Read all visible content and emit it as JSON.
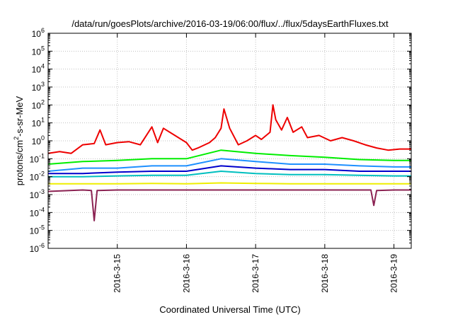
{
  "chart_data": {
    "type": "line",
    "title": "/data/run/goesPlots/archive/2016-03-19/06:00/flux/../flux/5daysEarthFluxes.txt",
    "xlabel": "Coordinated Universal Time (UTC)",
    "ylabel": {
      "pre": "protons/cm",
      "sup": "2",
      "post": "-s-sr-MeV"
    },
    "y_scale": "log",
    "ylim": [
      1e-06,
      1000000.0
    ],
    "xlim": [
      "2016-03-14 00:00",
      "2016-03-19 06:00"
    ],
    "grid": true,
    "legend": "none",
    "y_ticks": [
      {
        "value": 1e-06,
        "base": "10",
        "exp": "-6"
      },
      {
        "value": 1e-05,
        "base": "10",
        "exp": "-5"
      },
      {
        "value": 0.0001,
        "base": "10",
        "exp": "-4"
      },
      {
        "value": 0.001,
        "base": "10",
        "exp": "-3"
      },
      {
        "value": 0.01,
        "base": "10",
        "exp": "-2"
      },
      {
        "value": 0.1,
        "base": "10",
        "exp": "-1"
      },
      {
        "value": 1.0,
        "base": "10",
        "exp": "0"
      },
      {
        "value": 10.0,
        "base": "10",
        "exp": "1"
      },
      {
        "value": 100.0,
        "base": "10",
        "exp": "2"
      },
      {
        "value": 1000.0,
        "base": "10",
        "exp": "3"
      },
      {
        "value": 10000.0,
        "base": "10",
        "exp": "4"
      },
      {
        "value": 100000.0,
        "base": "10",
        "exp": "5"
      },
      {
        "value": 1000000.0,
        "base": "10",
        "exp": "6"
      }
    ],
    "x_ticks": [
      {
        "value": "2016-03-15 00:00",
        "label": "2016-3-15"
      },
      {
        "value": "2016-03-16 00:00",
        "label": "2016-3-16"
      },
      {
        "value": "2016-03-17 00:00",
        "label": "2016-3-17"
      },
      {
        "value": "2016-03-18 00:00",
        "label": "2016-3-18"
      },
      {
        "value": "2016-03-19 00:00",
        "label": "2016-3-19"
      }
    ],
    "series": [
      {
        "color": "#ee0000",
        "points": [
          [
            "2016-03-14 00:00",
            0.2
          ],
          [
            "2016-03-14 04:00",
            0.25
          ],
          [
            "2016-03-14 08:00",
            0.2
          ],
          [
            "2016-03-14 12:00",
            0.6
          ],
          [
            "2016-03-14 16:00",
            0.7
          ],
          [
            "2016-03-14 18:00",
            4.0
          ],
          [
            "2016-03-14 20:00",
            0.6
          ],
          [
            "2016-03-15 00:00",
            0.8
          ],
          [
            "2016-03-15 04:00",
            0.9
          ],
          [
            "2016-03-15 08:00",
            0.6
          ],
          [
            "2016-03-15 12:00",
            6.0
          ],
          [
            "2016-03-15 14:00",
            0.8
          ],
          [
            "2016-03-15 16:00",
            5.0
          ],
          [
            "2016-03-15 20:00",
            2.0
          ],
          [
            "2016-03-16 00:00",
            0.8
          ],
          [
            "2016-03-16 02:00",
            0.3
          ],
          [
            "2016-03-16 04:00",
            0.4
          ],
          [
            "2016-03-16 08:00",
            0.8
          ],
          [
            "2016-03-16 10:00",
            1.5
          ],
          [
            "2016-03-16 12:00",
            5.0
          ],
          [
            "2016-03-16 13:00",
            60.0
          ],
          [
            "2016-03-16 15:00",
            5.0
          ],
          [
            "2016-03-16 18:00",
            0.6
          ],
          [
            "2016-03-16 21:00",
            1.0
          ],
          [
            "2016-03-17 00:00",
            2.0
          ],
          [
            "2016-03-17 02:00",
            1.2
          ],
          [
            "2016-03-17 05:00",
            3.0
          ],
          [
            "2016-03-17 06:00",
            100.0
          ],
          [
            "2016-03-17 07:00",
            15.0
          ],
          [
            "2016-03-17 09:00",
            4.0
          ],
          [
            "2016-03-17 11:00",
            20.0
          ],
          [
            "2016-03-17 13:00",
            3.0
          ],
          [
            "2016-03-17 16:00",
            6.0
          ],
          [
            "2016-03-17 18:00",
            1.5
          ],
          [
            "2016-03-17 22:00",
            2.0
          ],
          [
            "2016-03-18 02:00",
            1.0
          ],
          [
            "2016-03-18 06:00",
            1.5
          ],
          [
            "2016-03-18 10:00",
            1.0
          ],
          [
            "2016-03-18 14:00",
            0.6
          ],
          [
            "2016-03-18 18:00",
            0.4
          ],
          [
            "2016-03-18 22:00",
            0.3
          ],
          [
            "2016-03-19 02:00",
            0.35
          ],
          [
            "2016-03-19 06:00",
            0.35
          ]
        ]
      },
      {
        "color": "#00ee00",
        "points": [
          [
            "2016-03-14 00:00",
            0.05
          ],
          [
            "2016-03-14 12:00",
            0.07
          ],
          [
            "2016-03-15 00:00",
            0.08
          ],
          [
            "2016-03-15 12:00",
            0.1
          ],
          [
            "2016-03-16 00:00",
            0.1
          ],
          [
            "2016-03-16 12:00",
            0.3
          ],
          [
            "2016-03-17 00:00",
            0.2
          ],
          [
            "2016-03-17 12:00",
            0.15
          ],
          [
            "2016-03-18 00:00",
            0.12
          ],
          [
            "2016-03-18 12:00",
            0.09
          ],
          [
            "2016-03-19 00:00",
            0.08
          ],
          [
            "2016-03-19 06:00",
            0.08
          ]
        ]
      },
      {
        "color": "#1e90ff",
        "points": [
          [
            "2016-03-14 00:00",
            0.02
          ],
          [
            "2016-03-14 12:00",
            0.03
          ],
          [
            "2016-03-15 00:00",
            0.03
          ],
          [
            "2016-03-15 12:00",
            0.04
          ],
          [
            "2016-03-16 00:00",
            0.04
          ],
          [
            "2016-03-16 12:00",
            0.1
          ],
          [
            "2016-03-17 00:00",
            0.07
          ],
          [
            "2016-03-17 12:00",
            0.05
          ],
          [
            "2016-03-18 00:00",
            0.05
          ],
          [
            "2016-03-18 12:00",
            0.04
          ],
          [
            "2016-03-19 00:00",
            0.035
          ],
          [
            "2016-03-19 06:00",
            0.035
          ]
        ]
      },
      {
        "color": "#0000cc",
        "points": [
          [
            "2016-03-14 00:00",
            0.015
          ],
          [
            "2016-03-14 12:00",
            0.015
          ],
          [
            "2016-03-15 00:00",
            0.018
          ],
          [
            "2016-03-15 12:00",
            0.02
          ],
          [
            "2016-03-16 00:00",
            0.02
          ],
          [
            "2016-03-16 12:00",
            0.04
          ],
          [
            "2016-03-17 00:00",
            0.03
          ],
          [
            "2016-03-17 12:00",
            0.025
          ],
          [
            "2016-03-18 00:00",
            0.025
          ],
          [
            "2016-03-18 12:00",
            0.02
          ],
          [
            "2016-03-19 00:00",
            0.02
          ],
          [
            "2016-03-19 06:00",
            0.02
          ]
        ]
      },
      {
        "color": "#00bfbf",
        "points": [
          [
            "2016-03-14 00:00",
            0.01
          ],
          [
            "2016-03-14 12:00",
            0.01
          ],
          [
            "2016-03-15 00:00",
            0.011
          ],
          [
            "2016-03-15 12:00",
            0.012
          ],
          [
            "2016-03-16 00:00",
            0.012
          ],
          [
            "2016-03-16 12:00",
            0.02
          ],
          [
            "2016-03-17 00:00",
            0.015
          ],
          [
            "2016-03-17 12:00",
            0.013
          ],
          [
            "2016-03-18 00:00",
            0.013
          ],
          [
            "2016-03-18 12:00",
            0.012
          ],
          [
            "2016-03-19 00:00",
            0.011
          ],
          [
            "2016-03-19 06:00",
            0.011
          ]
        ]
      },
      {
        "color": "#eeee00",
        "points": [
          [
            "2016-03-14 00:00",
            0.004
          ],
          [
            "2016-03-14 12:00",
            0.004
          ],
          [
            "2016-03-15 00:00",
            0.004
          ],
          [
            "2016-03-15 12:00",
            0.0042
          ],
          [
            "2016-03-16 00:00",
            0.004
          ],
          [
            "2016-03-16 12:00",
            0.0045
          ],
          [
            "2016-03-17 00:00",
            0.0042
          ],
          [
            "2016-03-17 12:00",
            0.004
          ],
          [
            "2016-03-18 00:00",
            0.004
          ],
          [
            "2016-03-18 12:00",
            0.004
          ],
          [
            "2016-03-19 00:00",
            0.004
          ],
          [
            "2016-03-19 06:00",
            0.004
          ]
        ]
      },
      {
        "color": "#8b2252",
        "points": [
          [
            "2016-03-14 00:00",
            0.0015
          ],
          [
            "2016-03-14 12:00",
            0.0018
          ],
          [
            "2016-03-14 15:00",
            0.0017
          ],
          [
            "2016-03-14 16:00",
            3.5e-05
          ],
          [
            "2016-03-14 17:00",
            0.0017
          ],
          [
            "2016-03-15 00:00",
            0.0018
          ],
          [
            "2016-03-15 12:00",
            0.0018
          ],
          [
            "2016-03-16 00:00",
            0.0018
          ],
          [
            "2016-03-16 12:00",
            0.0018
          ],
          [
            "2016-03-17 00:00",
            0.0018
          ],
          [
            "2016-03-17 12:00",
            0.0018
          ],
          [
            "2016-03-18 00:00",
            0.0018
          ],
          [
            "2016-03-18 12:00",
            0.0018
          ],
          [
            "2016-03-18 16:00",
            0.0018
          ],
          [
            "2016-03-18 17:00",
            0.00025
          ],
          [
            "2016-03-18 18:00",
            0.0017
          ],
          [
            "2016-03-19 00:00",
            0.0018
          ],
          [
            "2016-03-19 06:00",
            0.0018
          ]
        ]
      }
    ]
  }
}
